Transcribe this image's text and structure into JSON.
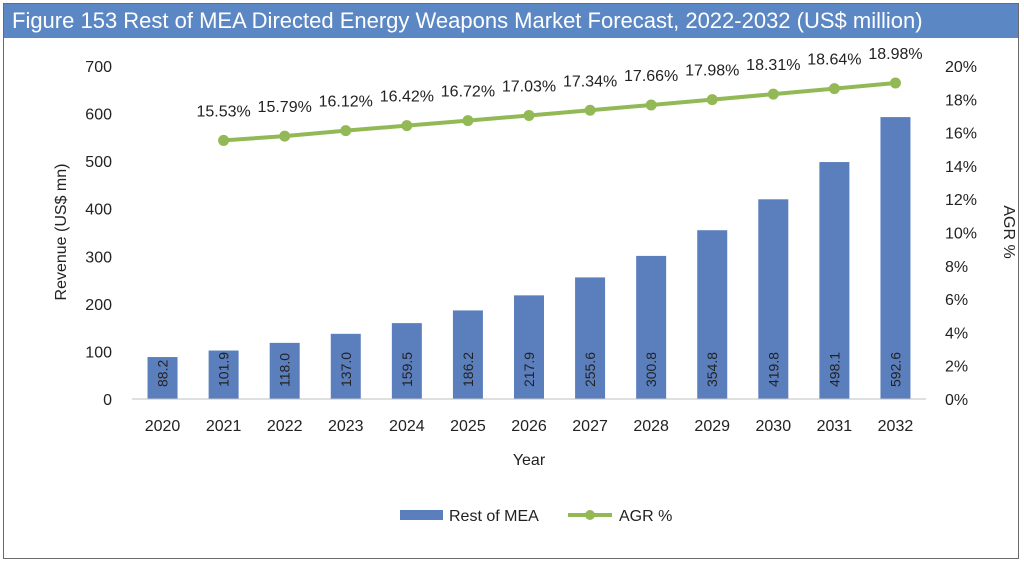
{
  "title": "Figure 153 Rest of MEA Directed Energy Weapons Market Forecast, 2022-2032 (US$ million)",
  "chart_data": {
    "type": "bar",
    "categories": [
      "2020",
      "2021",
      "2022",
      "2023",
      "2024",
      "2025",
      "2026",
      "2027",
      "2028",
      "2029",
      "2030",
      "2031",
      "2032"
    ],
    "series": [
      {
        "name": "Rest of MEA",
        "type": "bar",
        "axis": "left",
        "color": "#5b7fbd",
        "values": [
          88.2,
          101.9,
          118.0,
          137.0,
          159.5,
          186.2,
          217.9,
          255.6,
          300.8,
          354.8,
          419.8,
          498.1,
          592.6
        ],
        "labels": [
          "88.2",
          "101.9",
          "118.0",
          "137.0",
          "159.5",
          "186.2",
          "217.9",
          "255.6",
          "300.8",
          "354.8",
          "419.8",
          "498.1",
          "592.6"
        ]
      },
      {
        "name": "AGR %",
        "type": "line",
        "axis": "right",
        "color": "#93b957",
        "values": [
          null,
          15.53,
          15.79,
          16.12,
          16.42,
          16.72,
          17.03,
          17.34,
          17.66,
          17.98,
          18.31,
          18.64,
          18.98
        ],
        "labels": [
          "",
          "15.53%",
          "15.79%",
          "16.12%",
          "16.42%",
          "16.72%",
          "17.03%",
          "17.34%",
          "17.66%",
          "17.98%",
          "18.31%",
          "18.64%",
          "18.98%"
        ]
      }
    ],
    "xlabel": "Year",
    "ylabel": "Revenue (US$ mn)",
    "y2label": "AGR %",
    "ylim": [
      0,
      700
    ],
    "yticks": [
      "0",
      "100",
      "200",
      "300",
      "400",
      "500",
      "600",
      "700"
    ],
    "y2lim": [
      0,
      20
    ],
    "y2ticks": [
      "0%",
      "2%",
      "4%",
      "6%",
      "8%",
      "10%",
      "12%",
      "14%",
      "16%",
      "18%",
      "20%"
    ],
    "grid": false,
    "legend_position": "bottom"
  }
}
